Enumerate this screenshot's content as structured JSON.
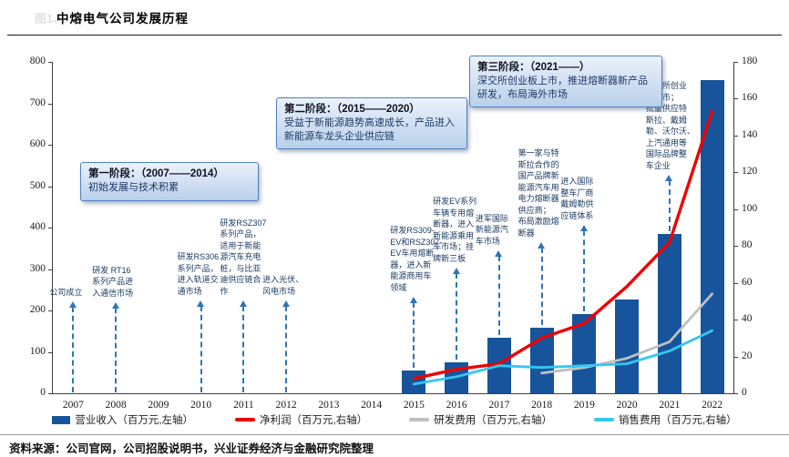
{
  "figure_label": "图1、",
  "header": {
    "title": "中熔电气公司发展历程"
  },
  "source_note": "资料来源：公司官网，公司招股说明书，兴业证券经济与金融研究院整理",
  "colors": {
    "bar": "#17549B",
    "net_profit_line": "#EE0000",
    "rd_expense_line": "#BFBFBF",
    "sales_expense_line": "#35C6F2",
    "arrow": "#2E75B6",
    "stage_box_border": "#4f81bd",
    "annotation_text": "#17375E"
  },
  "chart_data": {
    "type": "combo_bar_line",
    "categories": [
      "2007",
      "2008",
      "2009",
      "2010",
      "2011",
      "2012",
      "2013",
      "2014",
      "2015",
      "2016",
      "2017",
      "2018",
      "2019",
      "2020",
      "2021",
      "2022"
    ],
    "left_axis": {
      "min": 0,
      "max": 800,
      "step": 100
    },
    "right_axis": {
      "min": 0,
      "max": 180,
      "step": 20
    },
    "grid": false,
    "legend_position": "bottom",
    "series": [
      {
        "name": "营业收入（百万元,左轴）",
        "type": "bar",
        "axis": "left",
        "color": "#17549B",
        "values": [
          null,
          null,
          null,
          null,
          null,
          null,
          null,
          null,
          55,
          75,
          135,
          158,
          192,
          226,
          385,
          755
        ]
      },
      {
        "name": "净利润（百万元,右轴）",
        "type": "line",
        "axis": "right",
        "color": "#EE0000",
        "values": [
          null,
          null,
          null,
          null,
          null,
          null,
          null,
          null,
          8,
          13,
          16,
          30,
          38,
          58,
          82,
          153
        ]
      },
      {
        "name": "研发费用（百万元,右轴）",
        "type": "line",
        "axis": "right",
        "color": "#BFBFBF",
        "values": [
          null,
          null,
          null,
          null,
          null,
          null,
          null,
          null,
          null,
          null,
          null,
          11,
          14,
          19,
          28,
          54
        ]
      },
      {
        "name": "销售费用（百万元,右轴）",
        "type": "line",
        "axis": "right",
        "color": "#35C6F2",
        "values": [
          null,
          null,
          null,
          null,
          null,
          null,
          null,
          null,
          5,
          9,
          15,
          14,
          15,
          16,
          23,
          34
        ]
      }
    ],
    "stages": [
      {
        "title": "第一阶段：（2007——2014）",
        "body": "初始发展与技术积累"
      },
      {
        "title": "第二阶段：（2015——2020）",
        "body": "受益于新能源趋势高速成长，产品进入新能源车龙头企业供应链"
      },
      {
        "title": "第三阶段：（2021——）",
        "body": "深交所创业板上市，推进熔断器新产品研发，布局海外市场"
      }
    ],
    "annotations": [
      {
        "year": "2007",
        "text": "公司成立"
      },
      {
        "year": "2008",
        "text": "研发 RT16\n系列产品进\n入通信市场"
      },
      {
        "year": "2010",
        "text": "研发RS306\n系列产品，\n进入轨道交\n通市场"
      },
      {
        "year": "2011",
        "text": "研发RSZ307\n系列产品，\n适用于新能\n源汽车充电\n桩，与比亚\n迪供应链合\n作"
      },
      {
        "year": "2012",
        "text": "进入光伏、\n风电市场"
      },
      {
        "year": "2015",
        "text": "研发RS309-\nEV和RSZ307-\nEV车用熔断\n器，进入新\n能源商用车\n领域"
      },
      {
        "year": "2016",
        "text": "研发EV系列\n车辆专用熔\n断器，进入\n新能源乘用\n车市场；挂\n牌新三板"
      },
      {
        "year": "2017",
        "text": "进军国际\n新能源汽\n车市场"
      },
      {
        "year": "2018",
        "text": "第一家与特\n斯拉合作的\n国产品牌新\n能源汽车用\n电力熔断器\n供应商；\n布局激励熔\n断器"
      },
      {
        "year": "2019",
        "text": "进入国际\n整车厂商\n戴姆勒供\n应链体系"
      },
      {
        "year": "2021",
        "text": "深交所创业\n板上市；\n批量供应特\n斯拉、戴姆\n勒、沃尔沃、\n上汽通用等\n国际品牌整\n车企业"
      }
    ]
  }
}
